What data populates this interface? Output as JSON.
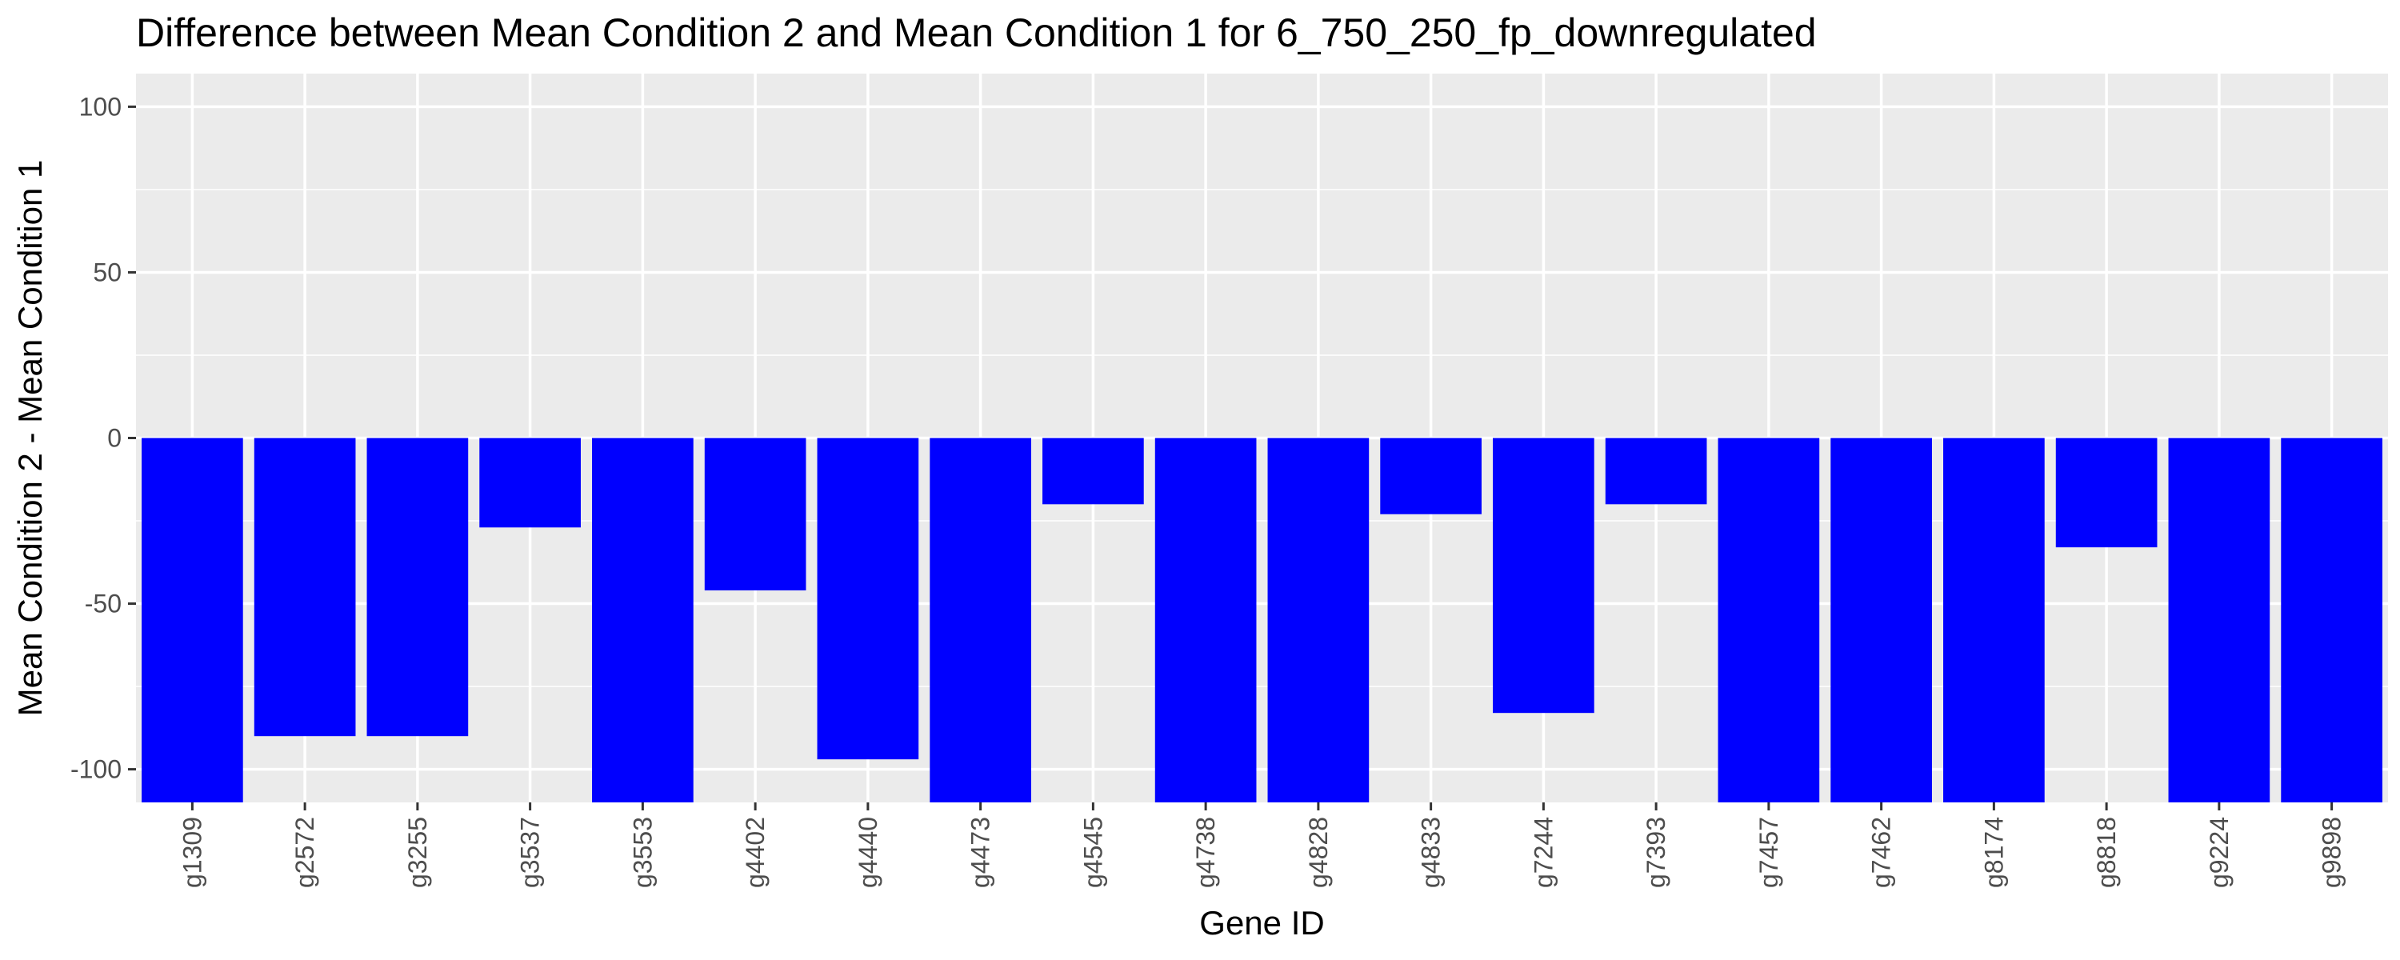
{
  "chart_data": {
    "type": "bar",
    "title": "Difference between Mean Condition 2 and Mean Condition 1 for 6_750_250_fp_downregulated",
    "xlabel": "Gene ID",
    "ylabel": "Mean Condition 2 - Mean Condition 1",
    "categories": [
      "g1309",
      "g2572",
      "g3255",
      "g3537",
      "g3553",
      "g4402",
      "g4440",
      "g4473",
      "g4545",
      "g4738",
      "g4828",
      "g4833",
      "g7244",
      "g7393",
      "g7457",
      "g7462",
      "g8174",
      "g8818",
      "g9224",
      "g9898"
    ],
    "values": [
      -110,
      -90,
      -90,
      -27,
      -110,
      -46,
      -97,
      -110,
      -20,
      -110,
      -110,
      -23,
      -83,
      -20,
      -110,
      -110,
      -110,
      -33,
      -110,
      -110
    ],
    "ylim": [
      -110,
      110
    ],
    "yticks": [
      "100",
      "50",
      "0",
      "-50",
      "-100"
    ],
    "ytick_values": [
      100,
      50,
      0,
      -50,
      -100
    ],
    "bar_color": "#0000ff",
    "panel_background": "#ebebeb",
    "grid": true,
    "grid_color": "#ffffff",
    "legend": "none"
  }
}
